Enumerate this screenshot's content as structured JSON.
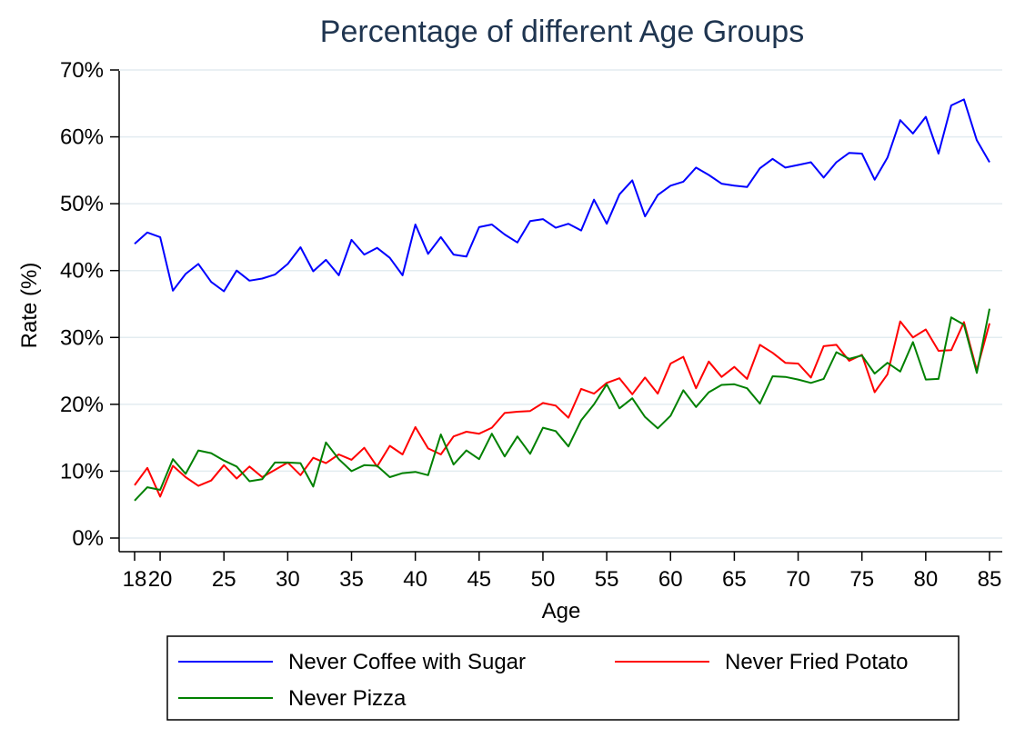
{
  "chart_data": {
    "type": "line",
    "title": "Percentage of different Age Groups",
    "xlabel": "Age",
    "ylabel": "Rate (%)",
    "xlim": [
      18,
      85
    ],
    "ylim": [
      0,
      70
    ],
    "x_ticks": [
      18,
      20,
      25,
      30,
      35,
      40,
      45,
      50,
      55,
      60,
      65,
      70,
      75,
      80,
      85
    ],
    "y_ticks": [
      0,
      10,
      20,
      30,
      40,
      50,
      60,
      70
    ],
    "x_tick_labels": [
      "18",
      "20",
      "25",
      "30",
      "35",
      "40",
      "45",
      "50",
      "55",
      "60",
      "65",
      "70",
      "75",
      "80",
      "85"
    ],
    "y_tick_labels": [
      "0%",
      "10%",
      "20%",
      "30%",
      "40%",
      "50%",
      "60%",
      "70%"
    ],
    "grid": true,
    "legend_position": "bottom",
    "x": [
      18,
      19,
      20,
      21,
      22,
      23,
      24,
      25,
      26,
      27,
      28,
      29,
      30,
      31,
      32,
      33,
      34,
      35,
      36,
      37,
      38,
      39,
      40,
      41,
      42,
      43,
      44,
      45,
      46,
      47,
      48,
      49,
      50,
      51,
      52,
      53,
      54,
      55,
      56,
      57,
      58,
      59,
      60,
      61,
      62,
      63,
      64,
      65,
      66,
      67,
      68,
      69,
      70,
      71,
      72,
      73,
      74,
      75,
      76,
      77,
      78,
      79,
      80,
      81,
      82,
      83,
      84,
      85
    ],
    "series": [
      {
        "name": "Never Coffee with Sugar",
        "color": "#0000ff",
        "values": [
          44.0,
          45.7,
          45.0,
          37.0,
          39.5,
          41.0,
          38.3,
          36.9,
          40.0,
          38.5,
          38.8,
          39.4,
          41.0,
          43.5,
          39.9,
          41.6,
          39.3,
          44.6,
          42.4,
          43.4,
          41.9,
          39.3,
          46.9,
          42.5,
          45.0,
          42.4,
          42.1,
          46.5,
          46.9,
          45.4,
          44.2,
          47.4,
          47.7,
          46.4,
          47.0,
          46.0,
          50.6,
          47.0,
          51.4,
          53.5,
          48.1,
          51.3,
          52.7,
          53.3,
          55.4,
          54.3,
          53.0,
          52.7,
          52.5,
          55.3,
          56.7,
          55.4,
          55.8,
          56.2,
          53.9,
          56.2,
          57.6,
          57.5,
          53.6,
          56.9,
          62.5,
          60.5,
          63.0,
          57.5,
          64.7,
          65.6,
          59.5,
          56.2
        ]
      },
      {
        "name": "Never Fried Potato",
        "color": "#ff0000",
        "values": [
          7.9,
          10.5,
          6.2,
          10.8,
          9.1,
          7.8,
          8.6,
          10.9,
          8.9,
          10.7,
          9.1,
          10.2,
          11.3,
          9.4,
          12.0,
          11.2,
          12.5,
          11.7,
          13.5,
          10.7,
          13.8,
          12.5,
          16.6,
          13.4,
          12.5,
          15.2,
          15.9,
          15.6,
          16.5,
          18.7,
          18.9,
          19.0,
          20.2,
          19.8,
          18.0,
          22.3,
          21.6,
          23.2,
          23.9,
          21.5,
          24.0,
          21.6,
          26.1,
          27.1,
          22.4,
          26.4,
          24.1,
          25.6,
          23.8,
          28.9,
          27.7,
          26.2,
          26.1,
          24.0,
          28.7,
          28.9,
          26.5,
          27.4,
          21.8,
          24.5,
          32.4,
          30.0,
          31.2,
          28.0,
          28.1,
          32.3,
          25.1,
          32.1
        ]
      },
      {
        "name": "Never Pizza",
        "color": "#008000",
        "values": [
          5.6,
          7.6,
          7.2,
          11.8,
          9.6,
          13.1,
          12.7,
          11.6,
          10.7,
          8.5,
          8.8,
          11.3,
          11.3,
          11.2,
          7.7,
          14.3,
          11.8,
          10.0,
          10.9,
          10.8,
          9.1,
          9.7,
          9.9,
          9.4,
          15.5,
          11.0,
          13.1,
          11.8,
          15.6,
          12.2,
          15.2,
          12.6,
          16.5,
          16.0,
          13.7,
          17.6,
          20.0,
          23.0,
          19.4,
          20.9,
          18.1,
          16.4,
          18.3,
          22.1,
          19.6,
          21.8,
          22.9,
          23.0,
          22.4,
          20.1,
          24.2,
          24.1,
          23.7,
          23.2,
          23.8,
          27.8,
          26.8,
          27.3,
          24.6,
          26.2,
          24.9,
          29.3,
          23.7,
          23.8,
          33.0,
          31.9,
          24.7,
          34.3
        ]
      }
    ]
  }
}
